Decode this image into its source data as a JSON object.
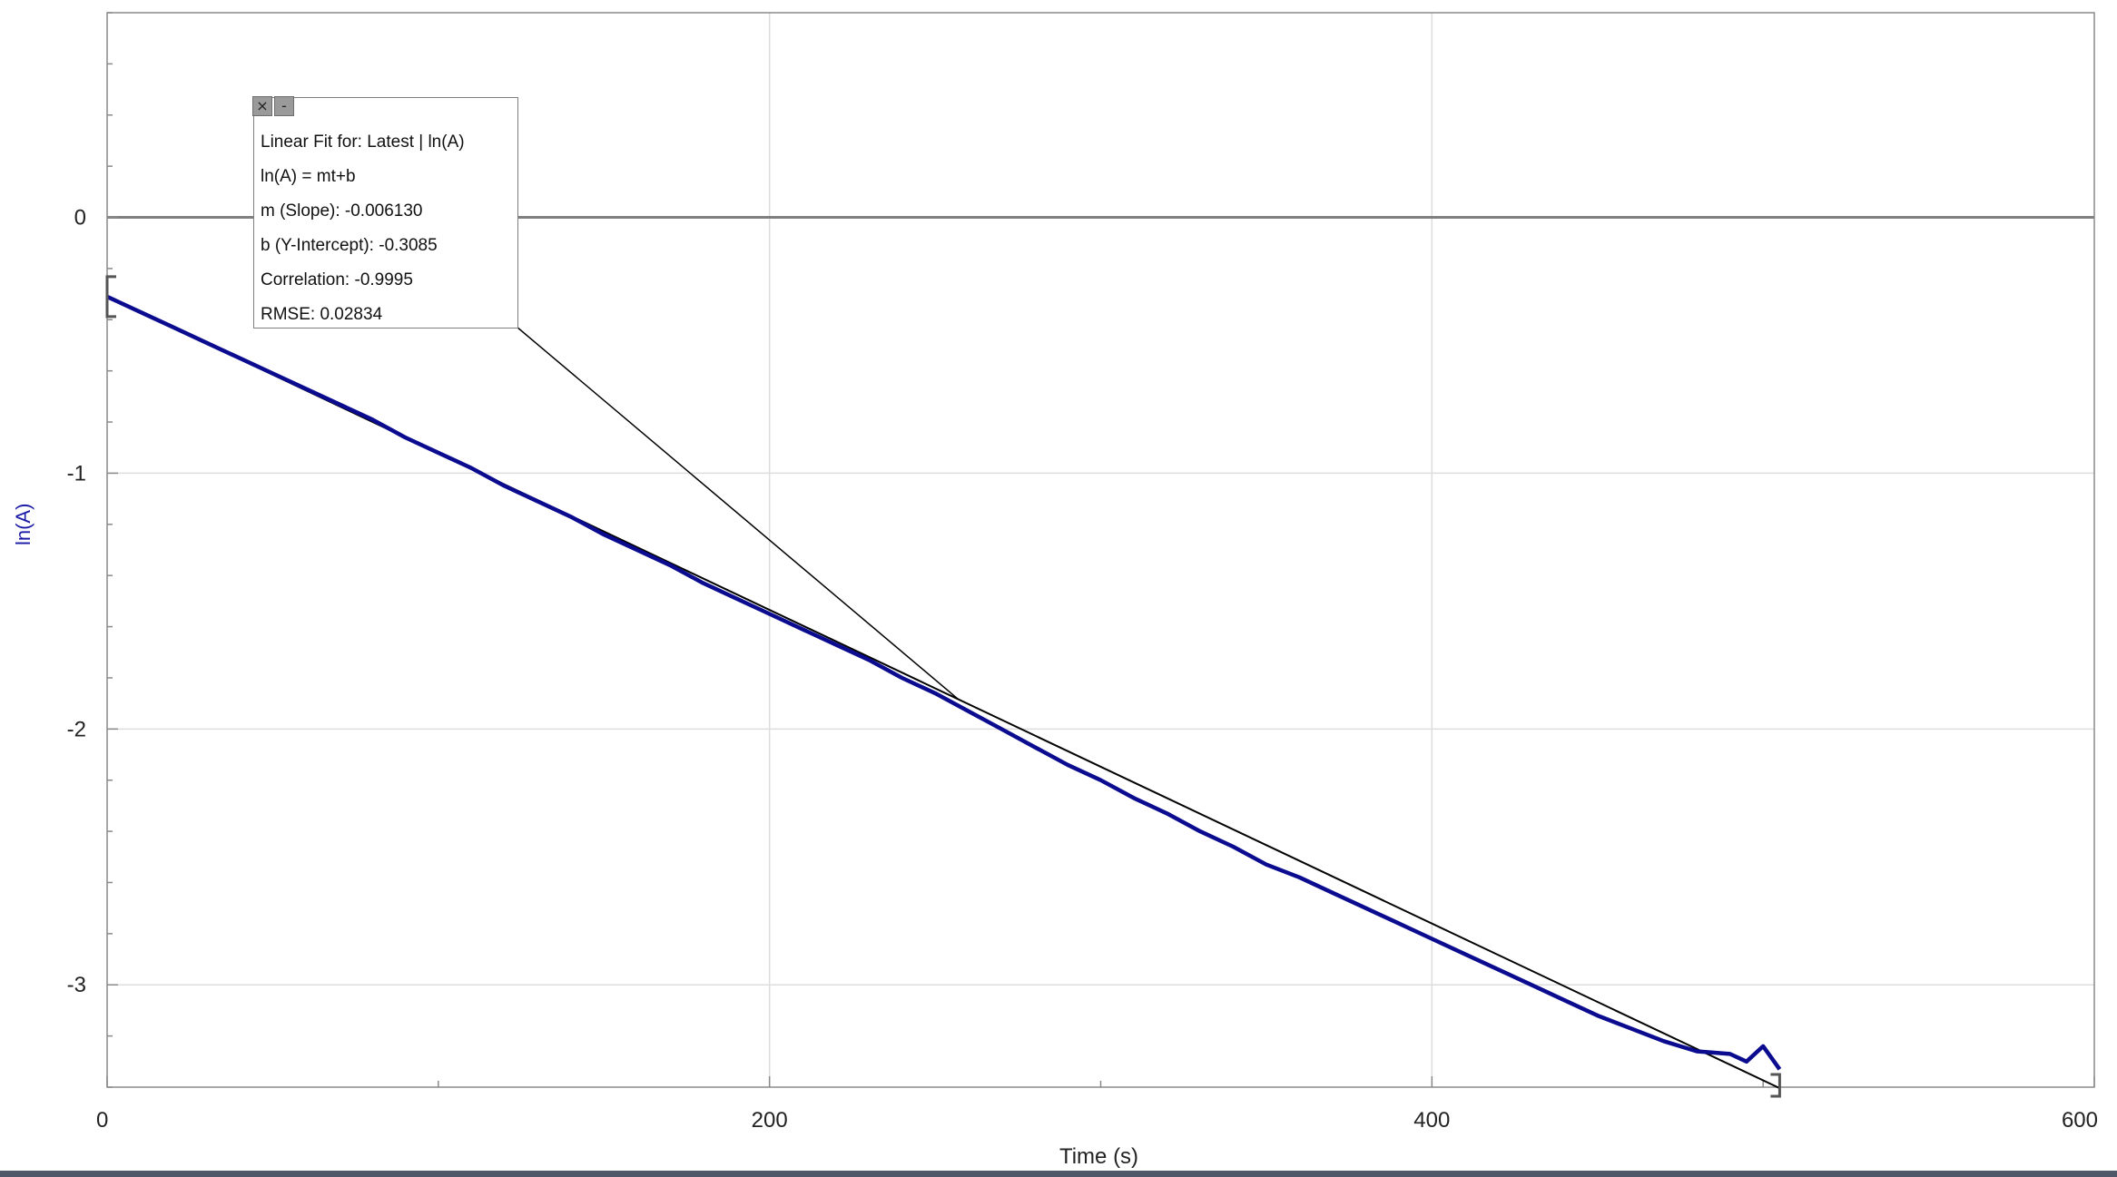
{
  "chart_data": {
    "type": "line",
    "xlabel": "Time (s)",
    "ylabel": "ln(A)",
    "xlim": [
      0,
      600
    ],
    "ylim": [
      -3.4,
      0.8
    ],
    "x_ticks": [
      0,
      200,
      400,
      600
    ],
    "y_ticks": [
      0,
      -1,
      -2,
      -3
    ],
    "grid": true,
    "colors": {
      "data": "#0b0b8f",
      "fit": "#000000",
      "zero_line": "#7f7f7f",
      "grid": "#dddddd"
    },
    "series": [
      {
        "name": "Latest | ln(A)",
        "x": [
          0,
          10,
          20,
          30,
          40,
          50,
          60,
          70,
          80,
          90,
          100,
          110,
          120,
          130,
          140,
          150,
          160,
          170,
          180,
          190,
          200,
          210,
          220,
          230,
          240,
          250,
          260,
          270,
          280,
          290,
          300,
          310,
          320,
          330,
          340,
          350,
          360,
          370,
          380,
          390,
          400,
          410,
          420,
          430,
          440,
          450,
          460,
          470,
          480,
          490,
          495,
          500,
          505
        ],
        "y": [
          -0.31,
          -0.37,
          -0.43,
          -0.49,
          -0.55,
          -0.61,
          -0.67,
          -0.73,
          -0.79,
          -0.86,
          -0.92,
          -0.98,
          -1.05,
          -1.11,
          -1.17,
          -1.24,
          -1.3,
          -1.36,
          -1.43,
          -1.49,
          -1.55,
          -1.61,
          -1.67,
          -1.73,
          -1.8,
          -1.86,
          -1.93,
          -2.0,
          -2.07,
          -2.14,
          -2.2,
          -2.27,
          -2.33,
          -2.4,
          -2.46,
          -2.53,
          -2.58,
          -2.64,
          -2.7,
          -2.76,
          -2.82,
          -2.88,
          -2.94,
          -3.0,
          -3.06,
          -3.12,
          -3.17,
          -3.22,
          -3.26,
          -3.27,
          -3.3,
          -3.24,
          -3.33
        ]
      },
      {
        "name": "Linear Fit",
        "x": [
          0,
          505
        ],
        "y": [
          -0.3085,
          -3.404
        ]
      }
    ],
    "fit_annotation": {
      "lines": [
        "Linear Fit for: Latest | ln(A)",
        "ln(A) = mt+b",
        "m (Slope): -0.006130",
        "b (Y-Intercept): -0.3085",
        "Correlation: -0.9995",
        "RMSE: 0.02834"
      ],
      "pointer_x": 257
    }
  },
  "icons": {
    "close": "close-icon",
    "minimize": "minimize-icon"
  }
}
